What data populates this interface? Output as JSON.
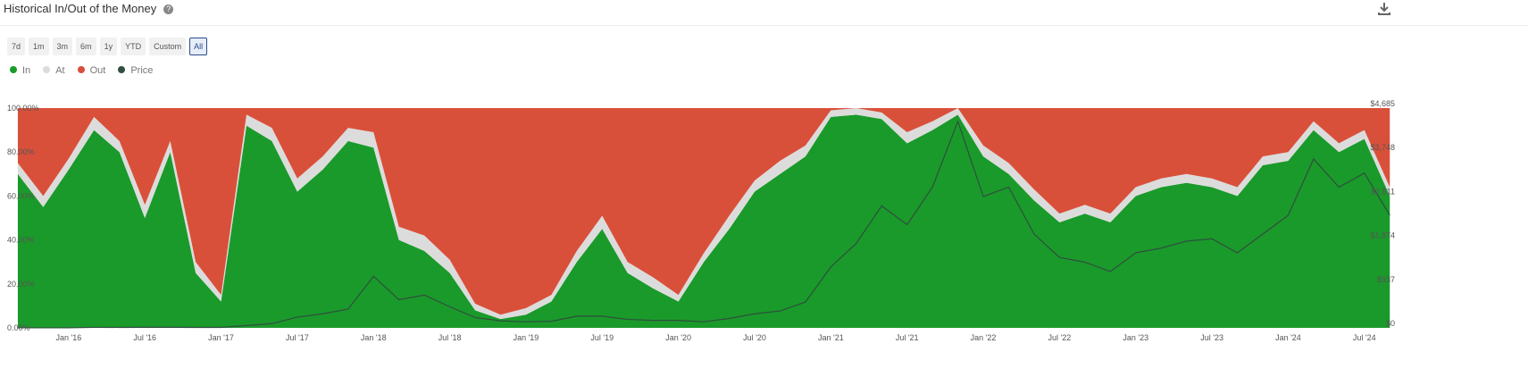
{
  "header": {
    "title": "Historical In/Out of the Money",
    "help_icon": "?"
  },
  "range_buttons": [
    "7d",
    "1m",
    "3m",
    "6m",
    "1y",
    "YTD",
    "Custom",
    "All"
  ],
  "chart_data": {
    "type": "area",
    "stacked": true,
    "categories": [
      null,
      null,
      "Jan '16",
      null,
      null,
      "Jul '16",
      null,
      null,
      "Jan '17",
      null,
      null,
      "Jul '17",
      null,
      null,
      "Jan '18",
      null,
      null,
      "Jul '18",
      null,
      null,
      "Jan '19",
      null,
      null,
      "Jul '19",
      null,
      null,
      "Jan '20",
      null,
      null,
      "Jul '20",
      null,
      null,
      "Jan '21",
      null,
      null,
      "Jul '21",
      null,
      null,
      "Jan '22",
      null,
      null,
      "Jul '22",
      null,
      null,
      "Jan '23",
      null,
      null,
      "Jul '23",
      null,
      null,
      "Jan '24",
      null,
      null,
      "Jul '24",
      null
    ],
    "series": [
      {
        "name": "In",
        "color": "#1a9a2a",
        "values": [
          70,
          55,
          72,
          90,
          80,
          50,
          80,
          25,
          12,
          92,
          85,
          62,
          72,
          85,
          82,
          40,
          35,
          25,
          8,
          4,
          6,
          12,
          30,
          45,
          25,
          18,
          12,
          30,
          45,
          62,
          70,
          78,
          96,
          97,
          95,
          84,
          90,
          97,
          78,
          70,
          58,
          48,
          52,
          48,
          60,
          64,
          66,
          64,
          60,
          74,
          76,
          90,
          80,
          86,
          60
        ]
      },
      {
        "name": "At",
        "color": "#dcdcdc",
        "values": [
          5,
          5,
          5,
          6,
          5,
          6,
          5,
          5,
          3,
          5,
          6,
          6,
          6,
          6,
          7,
          6,
          7,
          6,
          3,
          2,
          3,
          3,
          5,
          6,
          5,
          5,
          3,
          4,
          6,
          5,
          6,
          5,
          3,
          3,
          3,
          5,
          4,
          3,
          5,
          5,
          5,
          4,
          4,
          4,
          4,
          4,
          4,
          4,
          4,
          4,
          4,
          4,
          4,
          4,
          4
        ]
      },
      {
        "name": "Out",
        "color": "#d9503a",
        "values": [
          25,
          40,
          23,
          4,
          15,
          44,
          15,
          70,
          85,
          3,
          9,
          32,
          22,
          9,
          11,
          54,
          58,
          69,
          89,
          94,
          91,
          85,
          65,
          49,
          70,
          77,
          85,
          66,
          49,
          33,
          24,
          17,
          1,
          0,
          2,
          11,
          6,
          0,
          17,
          25,
          37,
          48,
          44,
          48,
          36,
          32,
          30,
          32,
          36,
          22,
          20,
          6,
          16,
          10,
          36
        ]
      },
      {
        "name": "Price",
        "type": "line",
        "axis": "y2",
        "color": "#2f4f3f",
        "values": [
          1,
          1,
          1,
          11,
          10,
          12,
          12,
          10,
          10,
          50,
          90,
          230,
          300,
          400,
          1100,
          600,
          700,
          450,
          220,
          150,
          130,
          140,
          250,
          250,
          180,
          160,
          160,
          130,
          200,
          300,
          360,
          550,
          1300,
          1800,
          2600,
          2200,
          3000,
          4400,
          2800,
          3000,
          2000,
          1500,
          1400,
          1200,
          1600,
          1700,
          1850,
          1900,
          1600,
          2000,
          2400,
          3600,
          3000,
          3300,
          2400
        ]
      }
    ],
    "ylim": [
      0,
      100
    ],
    "yticks": [
      {
        "value": 0,
        "label": "0.00%"
      },
      {
        "value": 20,
        "label": "20.00%"
      },
      {
        "value": 40,
        "label": "40.00%"
      },
      {
        "value": 60,
        "label": "60.00%"
      },
      {
        "value": 80,
        "label": "80.00%"
      },
      {
        "value": 100,
        "label": "100.00%"
      }
    ],
    "y2lim": [
      0,
      4685
    ],
    "y2ticks": [
      {
        "value": 0,
        "label": "$0"
      },
      {
        "value": 937,
        "label": "$937"
      },
      {
        "value": 1874,
        "label": "$1,874"
      },
      {
        "value": 2811,
        "label": "$2,811"
      },
      {
        "value": 3748,
        "label": "$3,748"
      },
      {
        "value": 4685,
        "label": "$4,685"
      }
    ],
    "grid": false,
    "legend": "top-left"
  }
}
